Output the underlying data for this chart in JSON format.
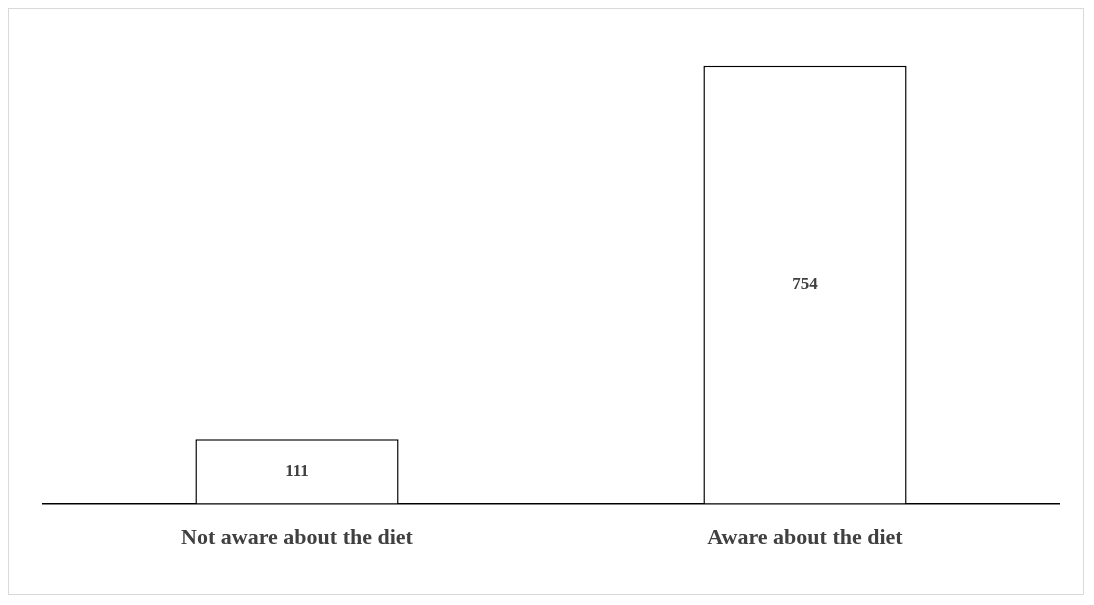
{
  "chart_data": {
    "type": "bar",
    "categories": [
      "Not aware about the diet",
      "Aware about the diet"
    ],
    "values": [
      111,
      754
    ],
    "color": "#ffffff",
    "data_labels": true,
    "grid": false,
    "legend": false
  }
}
